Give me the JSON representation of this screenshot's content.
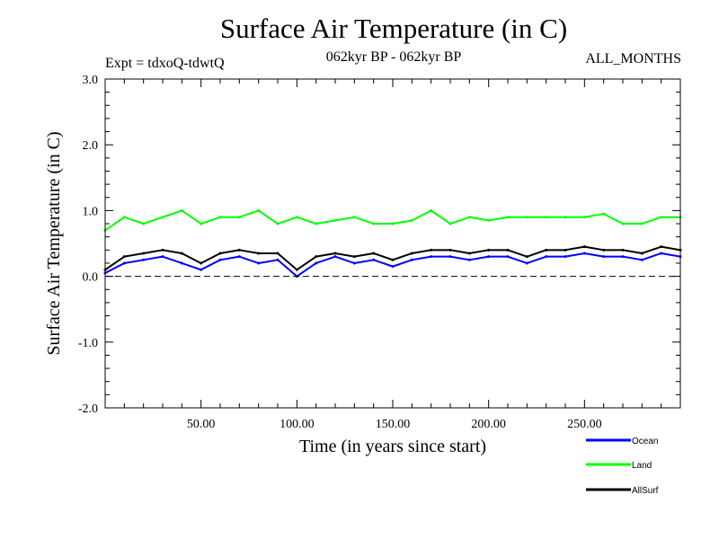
{
  "chart_data": {
    "type": "line",
    "title": "Surface Air Temperature (in C)",
    "subtitle_left": "Expt = tdxoQ-tdwtQ",
    "subtitle_center": "062kyr BP - 062kyr BP",
    "subtitle_right": "ALL_MONTHS",
    "xlabel": "Time (in years since start)",
    "ylabel": "Surface Air Temperature (in C)",
    "xlim": [
      0,
      300
    ],
    "ylim": [
      -2.0,
      3.0
    ],
    "x_ticks": [
      50,
      100,
      150,
      200,
      250
    ],
    "x_tick_labels": [
      "50.00",
      "100.00",
      "150.00",
      "200.00",
      "250.00"
    ],
    "y_ticks": [
      -2.0,
      -1.0,
      0.0,
      1.0,
      2.0,
      3.0
    ],
    "y_tick_labels": [
      "-2.0",
      "-1.0",
      "0.0",
      "1.0",
      "2.0",
      "3.0"
    ],
    "zero_line": true,
    "grid": false,
    "legend_position": "bottom-right",
    "x": [
      0,
      10,
      20,
      30,
      40,
      50,
      60,
      70,
      80,
      90,
      100,
      110,
      120,
      130,
      140,
      150,
      160,
      170,
      180,
      190,
      200,
      210,
      220,
      230,
      240,
      250,
      260,
      270,
      280,
      290,
      300
    ],
    "series": [
      {
        "name": "Ocean",
        "color": "#0000ff",
        "values": [
          0.05,
          0.2,
          0.25,
          0.3,
          0.2,
          0.1,
          0.25,
          0.3,
          0.2,
          0.25,
          0.0,
          0.2,
          0.3,
          0.2,
          0.25,
          0.15,
          0.25,
          0.3,
          0.3,
          0.25,
          0.3,
          0.3,
          0.2,
          0.3,
          0.3,
          0.35,
          0.3,
          0.3,
          0.25,
          0.35,
          0.3
        ]
      },
      {
        "name": "Land",
        "color": "#00ff00",
        "values": [
          0.7,
          0.9,
          0.8,
          0.9,
          1.0,
          0.8,
          0.9,
          0.9,
          1.0,
          0.8,
          0.9,
          0.8,
          0.85,
          0.9,
          0.8,
          0.8,
          0.85,
          1.0,
          0.8,
          0.9,
          0.85,
          0.9,
          0.9,
          0.9,
          0.9,
          0.9,
          0.95,
          0.8,
          0.8,
          0.9,
          0.9
        ]
      },
      {
        "name": "AllSurf",
        "color": "#000000",
        "values": [
          0.1,
          0.3,
          0.35,
          0.4,
          0.35,
          0.2,
          0.35,
          0.4,
          0.35,
          0.35,
          0.1,
          0.3,
          0.35,
          0.3,
          0.35,
          0.25,
          0.35,
          0.4,
          0.4,
          0.35,
          0.4,
          0.4,
          0.3,
          0.4,
          0.4,
          0.45,
          0.4,
          0.4,
          0.35,
          0.45,
          0.4
        ]
      }
    ]
  }
}
